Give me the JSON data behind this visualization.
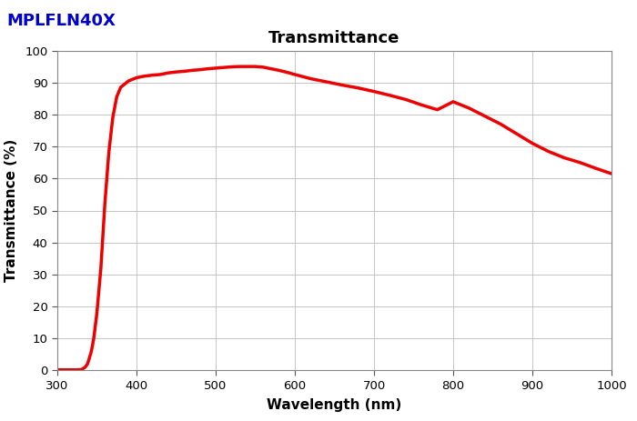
{
  "title": "Transmittance",
  "label_text": "MPLFLN40X",
  "label_color": "#0000CC",
  "xlabel": "Wavelength (nm)",
  "ylabel": "Transmittance (%)",
  "xlim": [
    300,
    1000
  ],
  "ylim": [
    0,
    100
  ],
  "xticks": [
    300,
    400,
    500,
    600,
    700,
    800,
    900,
    1000
  ],
  "yticks": [
    0,
    10,
    20,
    30,
    40,
    50,
    60,
    70,
    80,
    90,
    100
  ],
  "line_color": "#EE0000",
  "line_width": 2.5,
  "background_color": "#FFFFFF",
  "grid_color": "#BBBBBB",
  "curve_x": [
    300,
    310,
    320,
    325,
    330,
    332,
    335,
    338,
    340,
    343,
    346,
    350,
    355,
    360,
    365,
    370,
    375,
    380,
    390,
    400,
    410,
    420,
    430,
    440,
    450,
    460,
    470,
    480,
    490,
    500,
    510,
    520,
    530,
    540,
    550,
    560,
    570,
    580,
    590,
    600,
    620,
    640,
    660,
    680,
    700,
    720,
    740,
    760,
    780,
    800,
    820,
    840,
    860,
    880,
    900,
    920,
    940,
    960,
    980,
    1000
  ],
  "curve_y": [
    0.2,
    0.2,
    0.2,
    0.2,
    0.3,
    0.5,
    1.0,
    2.0,
    3.5,
    6.0,
    10.0,
    18.0,
    32.0,
    52.0,
    68.0,
    79.0,
    85.5,
    88.5,
    90.5,
    91.5,
    92.0,
    92.3,
    92.5,
    93.0,
    93.3,
    93.5,
    93.8,
    94.0,
    94.3,
    94.5,
    94.7,
    94.9,
    95.0,
    95.0,
    95.0,
    94.8,
    94.3,
    93.8,
    93.2,
    92.5,
    91.2,
    90.2,
    89.2,
    88.3,
    87.2,
    86.0,
    84.7,
    83.0,
    81.5,
    84.0,
    82.0,
    79.5,
    77.0,
    74.0,
    71.0,
    68.5,
    66.5,
    65.0,
    63.2,
    61.5
  ]
}
